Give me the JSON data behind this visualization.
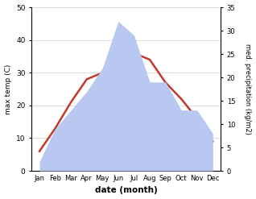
{
  "months": [
    "Jan",
    "Feb",
    "Mar",
    "Apr",
    "May",
    "Jun",
    "Jul",
    "Aug",
    "Sep",
    "Oct",
    "Nov",
    "Dec"
  ],
  "temperature": [
    6,
    13,
    21,
    28,
    30,
    27,
    36,
    34,
    27,
    22,
    16,
    9
  ],
  "precipitation": [
    2,
    9,
    13,
    17,
    22,
    32,
    29,
    19,
    19,
    13,
    13,
    8
  ],
  "temp_color": "#c0392b",
  "precip_fill_color": "#b8c8f0",
  "temp_ylim": [
    0,
    50
  ],
  "precip_ylim": [
    0,
    35
  ],
  "temp_yticks": [
    0,
    10,
    20,
    30,
    40,
    50
  ],
  "precip_yticks": [
    0,
    5,
    10,
    15,
    20,
    25,
    30,
    35
  ],
  "xlabel": "date (month)",
  "ylabel_left": "max temp (C)",
  "ylabel_right": "med. precipitation (kg/m2)",
  "bg_color": "#ffffff",
  "grid_color": "#d0d0d0"
}
